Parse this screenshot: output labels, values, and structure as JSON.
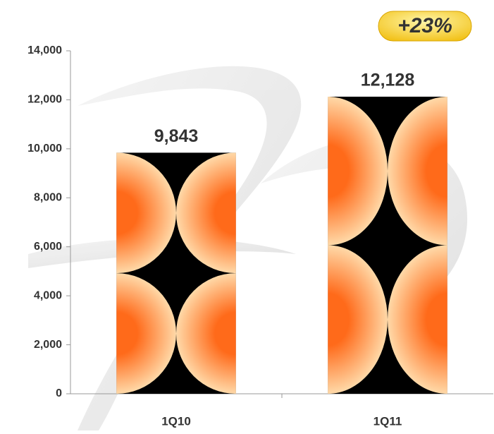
{
  "chart_data": {
    "type": "bar",
    "categories": [
      "1Q10",
      "1Q11"
    ],
    "values": [
      9843,
      12128
    ],
    "value_labels": [
      "9,843",
      "12,128"
    ],
    "color": "#ff6a1a",
    "annotation": "+23%",
    "ylim": [
      0,
      14000
    ],
    "yticks": [
      0,
      {
        "value": 2000,
        "label": "2,000"
      },
      {
        "value": 4000,
        "label": "4,000"
      },
      {
        "value": 6000,
        "label": "6,000"
      },
      {
        "value": 8000,
        "label": "8,000"
      },
      {
        "value": 10000,
        "label": "10,000"
      },
      {
        "value": 12000,
        "label": "12,000"
      },
      {
        "value": 14000,
        "label": "14,000"
      }
    ]
  }
}
